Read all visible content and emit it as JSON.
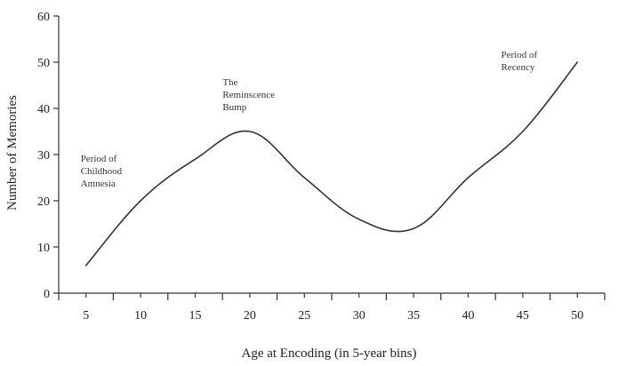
{
  "chart_data": {
    "type": "line",
    "title": "",
    "xlabel": "Age at Encoding (in 5-year bins)",
    "ylabel": "Number of Memories",
    "x": [
      5,
      10,
      15,
      20,
      25,
      30,
      35,
      40,
      45,
      50
    ],
    "xlim": [
      2.5,
      52.5
    ],
    "ylim": [
      0,
      60
    ],
    "x_ticks": [
      "5",
      "10",
      "15",
      "20",
      "25",
      "30",
      "35",
      "40",
      "45",
      "50"
    ],
    "y_ticks": [
      "0",
      "10",
      "20",
      "30",
      "40",
      "50",
      "60"
    ],
    "grid": false,
    "series": [
      {
        "values": [
          6,
          20,
          29,
          35,
          25,
          16,
          14,
          25,
          35,
          50
        ]
      }
    ],
    "annotations": [
      {
        "lines": [
          "Period of",
          "Childhood",
          "Amnesia"
        ],
        "x": 5,
        "y": 28.5
      },
      {
        "lines": [
          "The",
          "Reminscence",
          "Bump"
        ],
        "x": 18,
        "y": 45
      },
      {
        "lines": [
          "Period of",
          "Recency"
        ],
        "x": 43.5,
        "y": 51
      }
    ],
    "colors": {
      "line": "#333333",
      "axis": "#333333",
      "text": "#222222"
    }
  }
}
